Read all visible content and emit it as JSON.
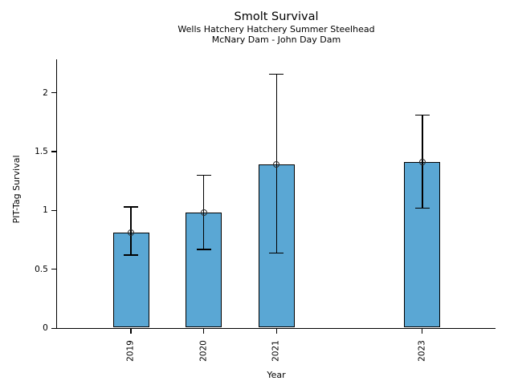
{
  "figure": {
    "background": "#ffffff"
  },
  "chart_data": {
    "type": "bar",
    "title": "Smolt Survival",
    "subtitle_lines": [
      "Wells Hatchery Hatchery Summer Steelhead",
      "McNary Dam - John Day Dam"
    ],
    "xlabel": "Year",
    "ylabel": "PIT-Tag Survival",
    "categories": [
      "2019",
      "2020",
      "2021",
      "2023"
    ],
    "x_numeric": [
      2019,
      2020,
      2021,
      2023
    ],
    "values": [
      0.81,
      0.98,
      1.39,
      1.41
    ],
    "error_low": [
      0.61,
      0.66,
      0.63,
      1.01
    ],
    "error_high": [
      1.03,
      1.3,
      2.16,
      1.81
    ],
    "yticks": [
      "0",
      "0.5",
      "1",
      "1.5",
      "2"
    ],
    "ytick_values": [
      0,
      0.5,
      1,
      1.5,
      2
    ],
    "ylim": [
      0,
      2.28
    ],
    "x_gap_note": "no bar for 2022",
    "bar_color": "#5AA7D4",
    "bar_edge_color": "#000000",
    "error_color": "#000000",
    "marker": "open-circle",
    "legend": "none",
    "grid": "off"
  }
}
